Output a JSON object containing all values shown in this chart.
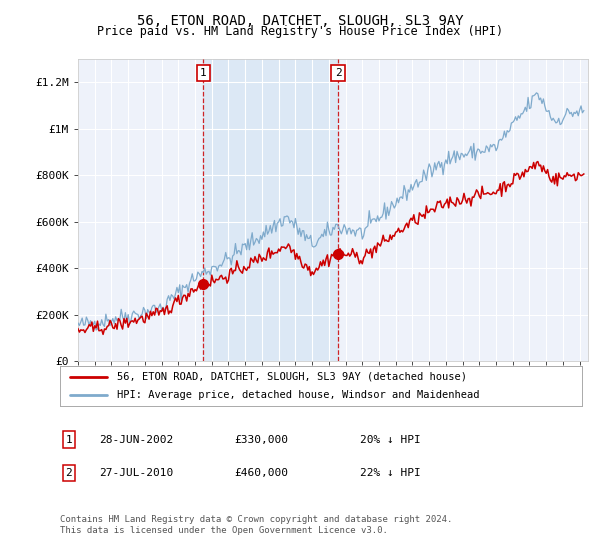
{
  "title1": "56, ETON ROAD, DATCHET, SLOUGH, SL3 9AY",
  "title2": "Price paid vs. HM Land Registry's House Price Index (HPI)",
  "ylabel_ticks": [
    "£0",
    "£200K",
    "£400K",
    "£600K",
    "£800K",
    "£1M",
    "£1.2M"
  ],
  "ytick_values": [
    0,
    200000,
    400000,
    600000,
    800000,
    1000000,
    1200000
  ],
  "ylim": [
    0,
    1300000
  ],
  "xlim_start": 1995.0,
  "xlim_end": 2025.5,
  "background_color": "#ffffff",
  "plot_bg_color": "#eef2fa",
  "grid_color": "#ffffff",
  "hpi_color": "#7faacc",
  "price_color": "#cc0000",
  "shade_color": "#dce8f5",
  "transaction1": {
    "label": "1",
    "date": "28-JUN-2002",
    "price": "£330,000",
    "pct": "20% ↓ HPI",
    "x": 2002.49
  },
  "transaction2": {
    "label": "2",
    "date": "27-JUL-2010",
    "price": "£460,000",
    "pct": "22% ↓ HPI",
    "x": 2010.56
  },
  "legend_line1": "56, ETON ROAD, DATCHET, SLOUGH, SL3 9AY (detached house)",
  "legend_line2": "HPI: Average price, detached house, Windsor and Maidenhead",
  "footer1": "Contains HM Land Registry data © Crown copyright and database right 2024.",
  "footer2": "This data is licensed under the Open Government Licence v3.0."
}
